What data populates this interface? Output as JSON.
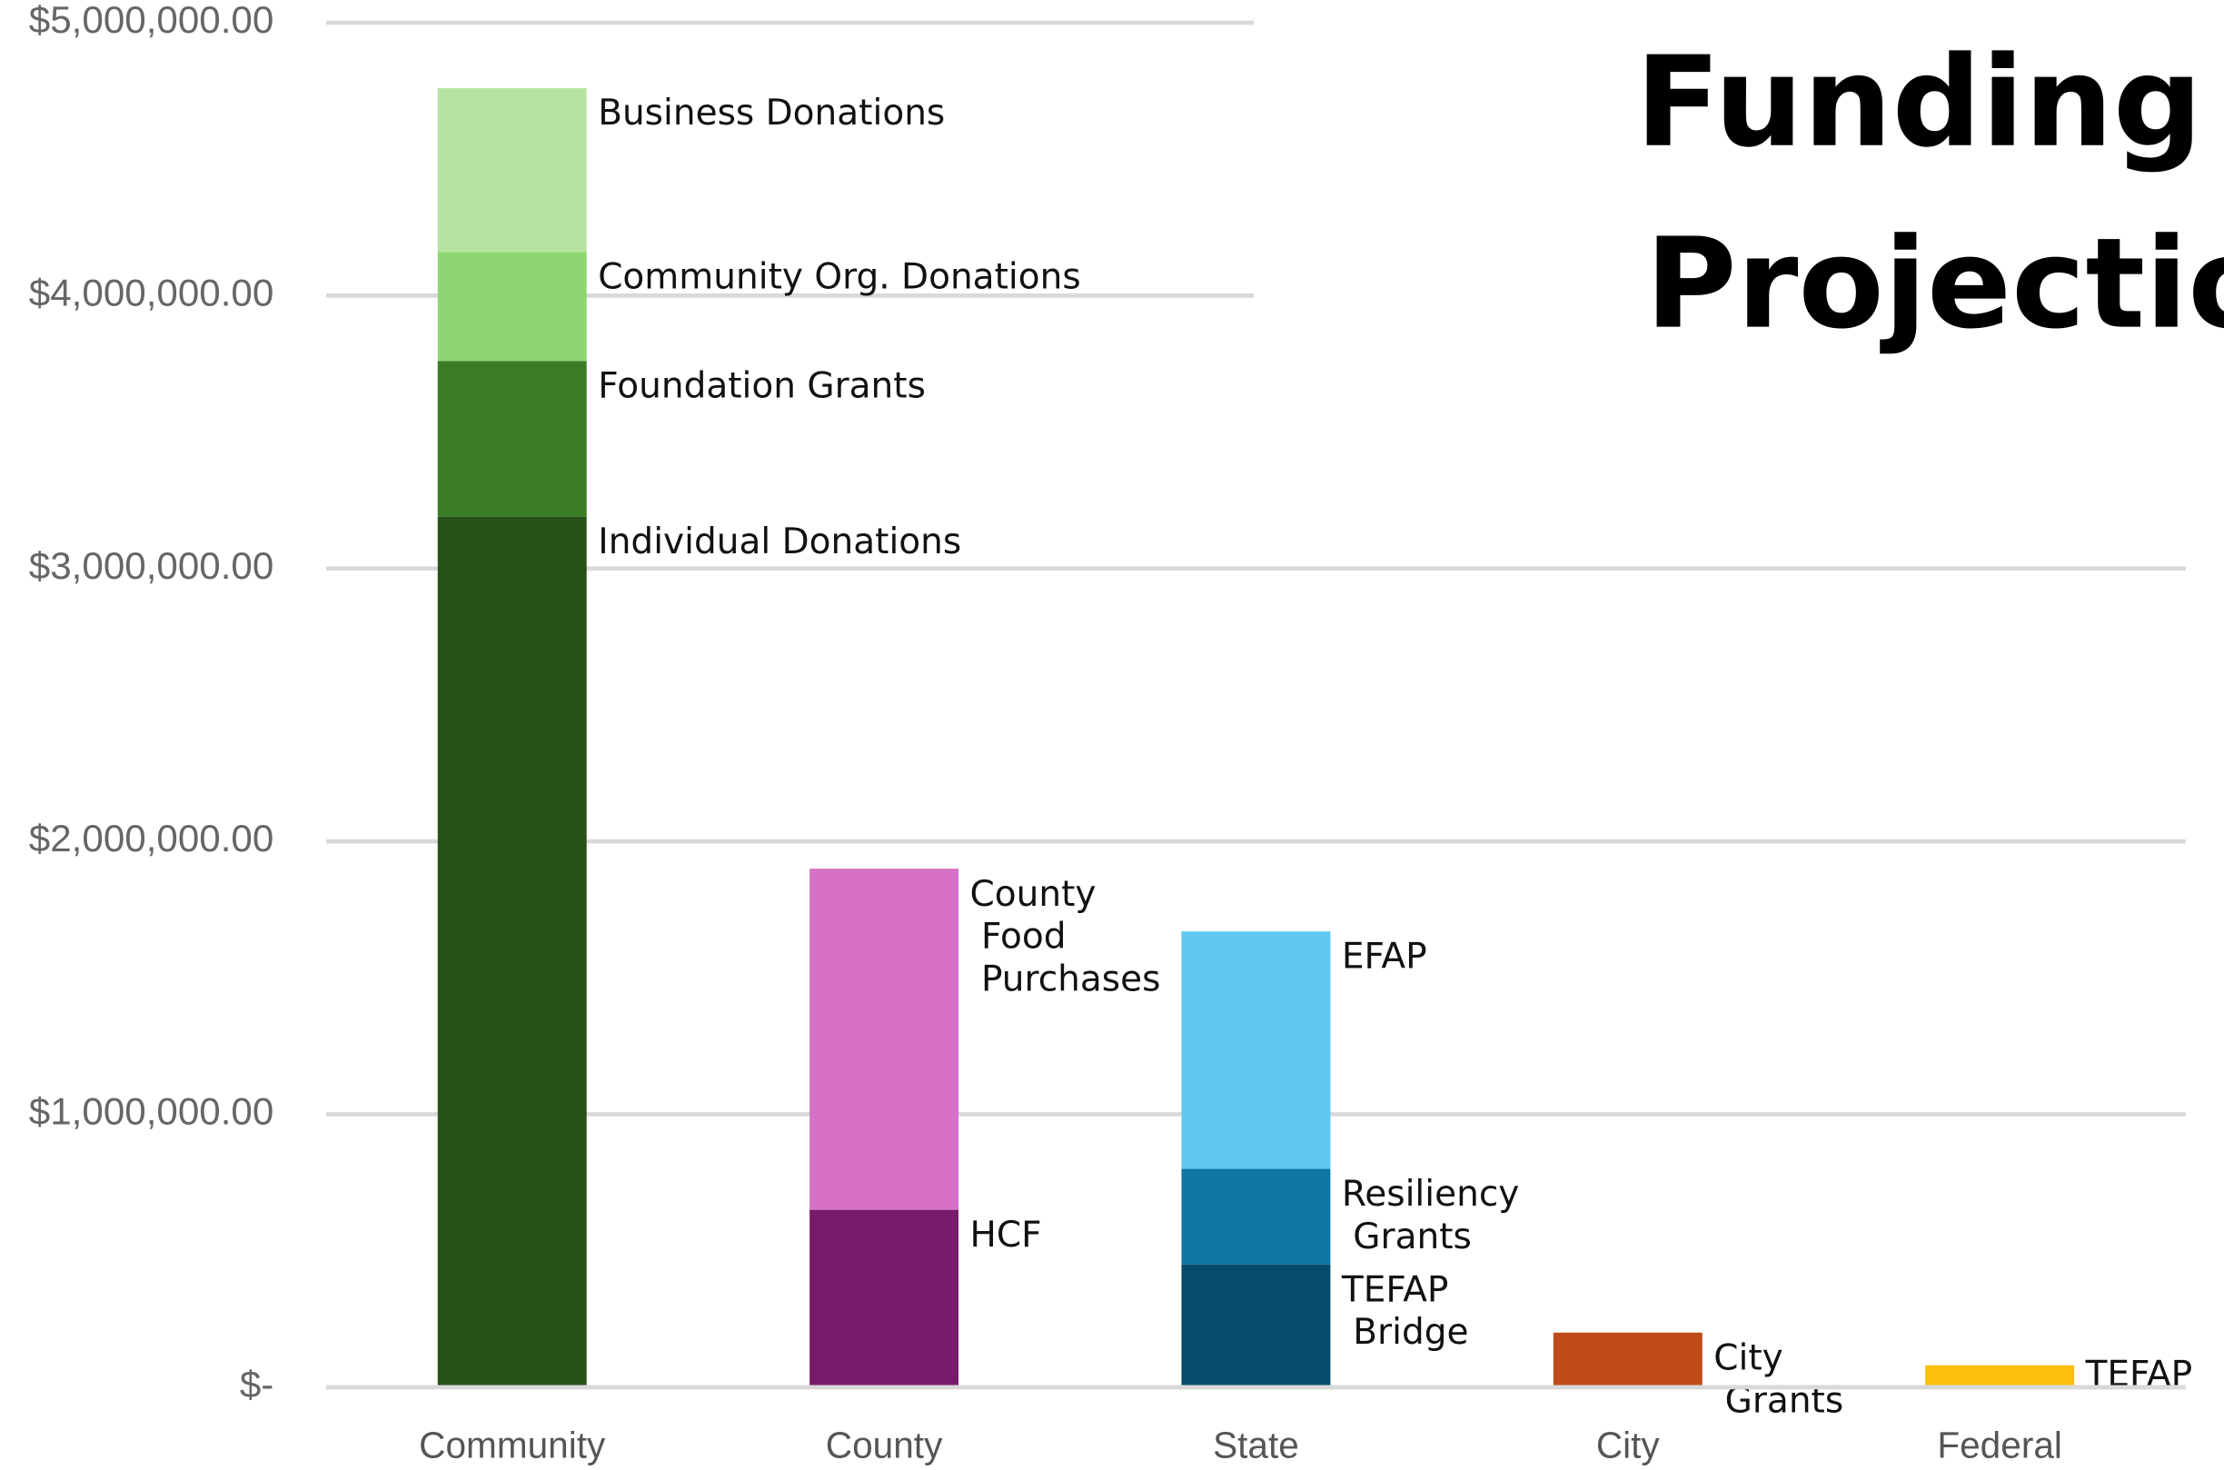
{
  "chart_data": {
    "type": "stacked_bar",
    "title": "Funding Projections",
    "categories": [
      "Community",
      "County",
      "State",
      "City",
      "Federal"
    ],
    "series": [
      {
        "name": "Individual Donations",
        "color": "#265218",
        "values": [
          3190000,
          null,
          null,
          null,
          null
        ]
      },
      {
        "name": "Foundation Grants",
        "color": "#3a7d25",
        "values": [
          570000,
          null,
          null,
          null,
          null
        ]
      },
      {
        "name": "Community Org. Donations",
        "color": "#8fd673",
        "values": [
          400000,
          null,
          null,
          null,
          null
        ]
      },
      {
        "name": "Business Donations",
        "color": "#b5e3a0",
        "values": [
          600000,
          null,
          null,
          null,
          null
        ]
      },
      {
        "name": "HCF",
        "color": "#771c6b",
        "values": [
          null,
          650000,
          null,
          null,
          null
        ]
      },
      {
        "name": "County Food Purchases",
        "color": "#d670c6",
        "values": [
          null,
          1250000,
          null,
          null,
          null
        ]
      },
      {
        "name": "TEFAP Bridge",
        "color": "#074c6b",
        "values": [
          null,
          null,
          450000,
          null,
          null
        ]
      },
      {
        "name": "Resiliency Grants",
        "color": "#0f76a3",
        "values": [
          null,
          null,
          350000,
          null,
          null
        ]
      },
      {
        "name": "EFAP",
        "color": "#5ec8f0",
        "values": [
          null,
          null,
          870000,
          null,
          null
        ]
      },
      {
        "name": "City Grants",
        "color": "#bf4b18",
        "values": [
          null,
          null,
          null,
          200000,
          null
        ]
      },
      {
        "name": "TEFAP",
        "color": "#fcc00c",
        "values": [
          null,
          null,
          null,
          null,
          80000
        ]
      }
    ],
    "ylim": [
      0,
      5000000
    ],
    "yticks": [
      {
        "value": 0,
        "label": "$-"
      },
      {
        "value": 1000000,
        "label": "$1,000,000.00"
      },
      {
        "value": 2000000,
        "label": "$2,000,000.00"
      },
      {
        "value": 3000000,
        "label": "$3,000,000.00"
      },
      {
        "value": 4000000,
        "label": "$4,000,000.00"
      },
      {
        "value": 5000000,
        "label": "$5,000,000.00"
      }
    ],
    "grid": true
  }
}
